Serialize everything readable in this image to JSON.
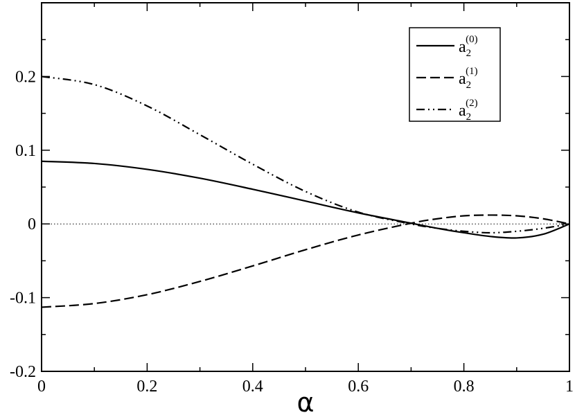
{
  "chart_data": {
    "type": "line",
    "title": "",
    "xlabel": "α",
    "ylabel": "",
    "xlim": [
      0,
      1
    ],
    "ylim": [
      -0.2,
      0.3
    ],
    "x_ticks": [
      0,
      0.2,
      0.4,
      0.6,
      0.8,
      1
    ],
    "x_tick_labels": [
      "0",
      "0.2",
      "0.4",
      "0.6",
      "0.8",
      "1"
    ],
    "y_ticks": [
      -0.2,
      -0.1,
      0,
      0.1,
      0.2
    ],
    "y_tick_labels": [
      "-0.2",
      "-0.1",
      "0",
      "0.1",
      "0.2"
    ],
    "grid": false,
    "reference_line": {
      "y": 0,
      "style": "dotted"
    },
    "legend_position": "top-right",
    "series": [
      {
        "name": "a2(0)",
        "base": "a",
        "sub": "2",
        "sup": "(0)",
        "style": "solid",
        "x": [
          0,
          0.1,
          0.2,
          0.3,
          0.4,
          0.5,
          0.6,
          0.7,
          0.75,
          0.8,
          0.85,
          0.9,
          0.95,
          1.0
        ],
        "y": [
          0.085,
          0.082,
          0.074,
          0.062,
          0.047,
          0.031,
          0.015,
          0.001,
          -0.006,
          -0.012,
          -0.017,
          -0.019,
          -0.014,
          0.0
        ]
      },
      {
        "name": "a2(1)",
        "base": "a",
        "sub": "2",
        "sup": "(1)",
        "style": "dashed",
        "x": [
          0,
          0.1,
          0.2,
          0.3,
          0.4,
          0.5,
          0.6,
          0.7,
          0.75,
          0.8,
          0.85,
          0.9,
          0.95,
          1.0
        ],
        "y": [
          -0.113,
          -0.108,
          -0.096,
          -0.078,
          -0.057,
          -0.035,
          -0.015,
          0.001,
          0.007,
          0.011,
          0.012,
          0.011,
          0.007,
          0.0
        ]
      },
      {
        "name": "a2(2)",
        "base": "a",
        "sub": "2",
        "sup": "(2)",
        "style": "dashdotdot",
        "x": [
          0,
          0.1,
          0.2,
          0.3,
          0.4,
          0.5,
          0.6,
          0.7,
          0.75,
          0.8,
          0.85,
          0.9,
          0.95,
          1.0
        ],
        "y": [
          0.2,
          0.189,
          0.16,
          0.121,
          0.081,
          0.044,
          0.016,
          0.0,
          -0.006,
          -0.01,
          -0.012,
          -0.01,
          -0.006,
          0.0
        ]
      }
    ]
  }
}
